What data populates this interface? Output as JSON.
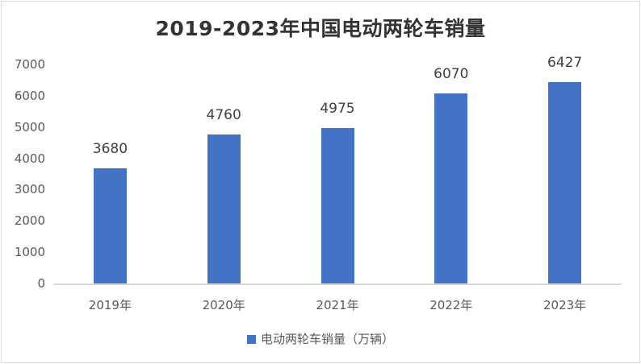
{
  "chart_data": {
    "type": "bar",
    "title": "2019-2023年中国电动两轮车销量",
    "categories": [
      "2019年",
      "2020年",
      "2021年",
      "2022年",
      "2023年"
    ],
    "series": [
      {
        "name": "电动两轮车销量（万辆）",
        "values": [
          3680,
          4760,
          4975,
          6070,
          6427
        ],
        "color": "#4472c4"
      }
    ],
    "values": [
      3680,
      4760,
      4975,
      6070,
      6427
    ],
    "data_labels": [
      "3680",
      "4760",
      "4975",
      "6070",
      "6427"
    ],
    "xlabel": "",
    "ylabel": "",
    "ylim": [
      0,
      7000
    ],
    "yticks": [
      "0",
      "1000",
      "2000",
      "3000",
      "4000",
      "5000",
      "6000",
      "7000"
    ],
    "grid": false,
    "legend_position": "bottom"
  },
  "legend": {
    "label": "电动两轮车销量（万辆）"
  }
}
